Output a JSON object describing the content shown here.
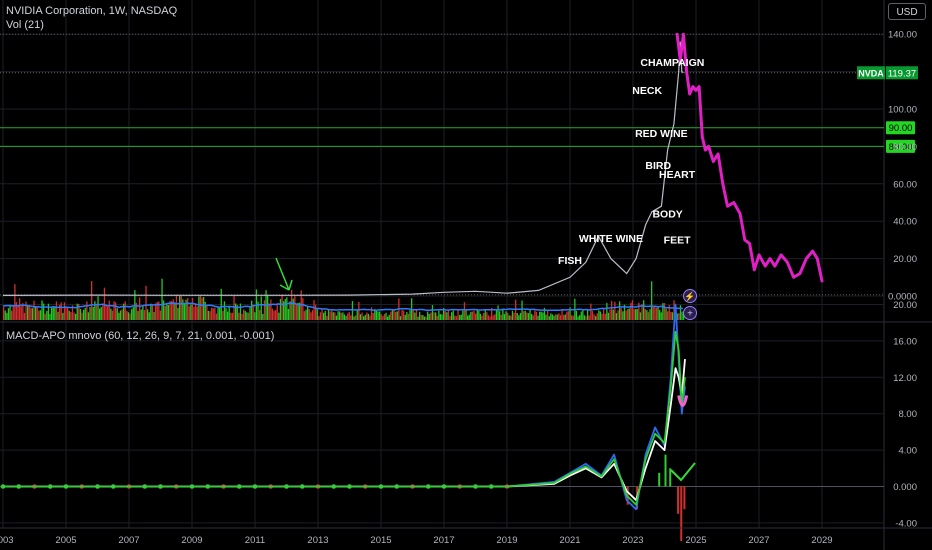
{
  "header": {
    "symbol_line": "NVIDIA Corporation, 1W, NASDAQ",
    "volume_line": "Vol (21)",
    "currency_button": "USD",
    "macd_line": "MACD-APO mnovo (60, 12, 26, 9, 7, 21, 0.001, -0.001)"
  },
  "colors": {
    "background": "#000000",
    "grid": "#1c1f26",
    "price_candles": "#b8bdc8",
    "projection": "#e020c4",
    "level_line": "#26a826",
    "level_badge": "#22d622",
    "last_price_badge": "#089a30",
    "volume_up": "#22c922",
    "volume_down": "#d32f2f",
    "volume_ma": "#2f7bff",
    "arrow": "#33dd33",
    "macd_blue": "#2a6cf0",
    "macd_white": "#ffffff",
    "macd_green": "#2ecc2e",
    "macd_pink": "#ff5fd0",
    "zero_line": "#4e5260",
    "axis_text": "#b2b5be",
    "annotation_text": "#ffffff"
  },
  "chart_data": [
    {
      "type": "line",
      "name": "price",
      "x_ticks": [
        "2003",
        "2005",
        "2007",
        "2009",
        "2011",
        "2013",
        "2015",
        "2017",
        "2019",
        "2021",
        "2023",
        "2025",
        "2027",
        "2029"
      ],
      "y_ticks": [
        "140.00",
        "120.00",
        "100.00",
        "80.00",
        "60.00",
        "40.00",
        "20.00",
        "0.0000"
      ],
      "ylim": [
        0,
        140
      ],
      "xlim": [
        2003,
        2029.5
      ],
      "series": [
        {
          "role": "historical price",
          "x": [
            2003,
            2006,
            2008,
            2010,
            2012,
            2014,
            2016,
            2017,
            2018,
            2019,
            2020,
            2021,
            2021.5,
            2021.9,
            2022.3,
            2022.8,
            2023.1,
            2023.4,
            2023.6,
            2023.9,
            2024.1,
            2024.3,
            2024.45,
            2024.5,
            2024.55,
            2024.6
          ],
          "values": [
            0.3,
            0.5,
            0.4,
            0.4,
            0.4,
            0.5,
            1.0,
            2.0,
            2.5,
            1.5,
            3.0,
            10,
            18,
            32,
            20,
            12,
            20,
            38,
            45,
            48,
            78,
            92,
            120,
            136,
            120,
            119.37
          ]
        },
        {
          "role": "projection",
          "x": [
            2024.4,
            2024.5,
            2024.6,
            2024.7,
            2024.8,
            2024.9,
            2025.0,
            2025.1,
            2025.2,
            2025.3,
            2025.4,
            2025.55,
            2025.7,
            2025.85,
            2026.0,
            2026.2,
            2026.4,
            2026.55,
            2026.7,
            2026.85,
            2027.0,
            2027.2,
            2027.35,
            2027.5,
            2027.7,
            2027.9,
            2028.1,
            2028.3,
            2028.5,
            2028.7,
            2028.85,
            2029.0
          ],
          "values": [
            140,
            126,
            140,
            120,
            108,
            112,
            110,
            112,
            85,
            78,
            80,
            72,
            76,
            60,
            48,
            50,
            44,
            30,
            28,
            14,
            22,
            16,
            20,
            16,
            22,
            18,
            10,
            12,
            20,
            24,
            20,
            8
          ]
        }
      ],
      "horizontal_levels": [
        {
          "label": "90.00",
          "value": 90
        },
        {
          "label": "80.00",
          "value": 80
        }
      ],
      "last_price": {
        "label": "NVDA",
        "value": "119.37",
        "numeric": 119.37
      },
      "annotations": [
        {
          "text": "CHAMPAIGN",
          "x": 2024.25,
          "y": 123
        },
        {
          "text": "NECK",
          "x": 2023.45,
          "y": 108
        },
        {
          "text": "RED WINE",
          "x": 2023.9,
          "y": 85
        },
        {
          "text": "BIRD",
          "x": 2023.8,
          "y": 68
        },
        {
          "text": "HEART",
          "x": 2024.4,
          "y": 63
        },
        {
          "text": "BODY",
          "x": 2024.1,
          "y": 42
        },
        {
          "text": "WHITE WINE",
          "x": 2022.3,
          "y": 29
        },
        {
          "text": "FEET",
          "x": 2024.4,
          "y": 28
        },
        {
          "text": "FISH",
          "x": 2021.0,
          "y": 17
        }
      ]
    },
    {
      "type": "bar",
      "name": "volume",
      "ma_label": "Vol (21)",
      "x_start": 2003,
      "x_end": 2024.6
    },
    {
      "type": "line",
      "name": "MACD-APO",
      "y_ticks": [
        "20.00",
        "16.00",
        "12.00",
        "8.00",
        "4.00",
        "0.000",
        "-4.00"
      ],
      "ylim": [
        -6,
        21
      ],
      "xlim": [
        2003,
        2029.5
      ],
      "series": [
        {
          "role": "blue line",
          "x": [
            2003,
            2010,
            2016,
            2019,
            2020.5,
            2021,
            2021.5,
            2022,
            2022.4,
            2022.8,
            2023.1,
            2023.4,
            2023.7,
            2024.0,
            2024.2,
            2024.35,
            2024.45,
            2024.55,
            2024.65
          ],
          "values": [
            0,
            0,
            0,
            0,
            0.5,
            1.5,
            2.5,
            1.2,
            3.5,
            -1.5,
            -2.5,
            3.5,
            6.5,
            4.5,
            12,
            20,
            14,
            8,
            11
          ]
        },
        {
          "role": "white line",
          "x": [
            2003,
            2010,
            2016,
            2019,
            2020.5,
            2021,
            2021.5,
            2022,
            2022.4,
            2022.8,
            2023.1,
            2023.4,
            2023.7,
            2024.0,
            2024.2,
            2024.35,
            2024.45,
            2024.55,
            2024.65
          ],
          "values": [
            0,
            0,
            0,
            0,
            0.3,
            1.2,
            2.0,
            1.0,
            2.5,
            -0.5,
            -1.5,
            2.0,
            5.0,
            4.0,
            9,
            13,
            12,
            10,
            14
          ]
        },
        {
          "role": "green line",
          "x": [
            2003,
            2010,
            2016,
            2019,
            2020.5,
            2021,
            2021.5,
            2022,
            2022.4,
            2022.8,
            2023.1,
            2023.4,
            2023.7,
            2024.0,
            2024.2,
            2024.35,
            2024.45,
            2024.55,
            2024.65
          ],
          "values": [
            0,
            0,
            0,
            0,
            0.4,
            1.4,
            2.2,
            1.1,
            3.0,
            -1.0,
            -2.0,
            3.0,
            5.8,
            4.8,
            11,
            17,
            15,
            9,
            12
          ]
        }
      ]
    }
  ]
}
